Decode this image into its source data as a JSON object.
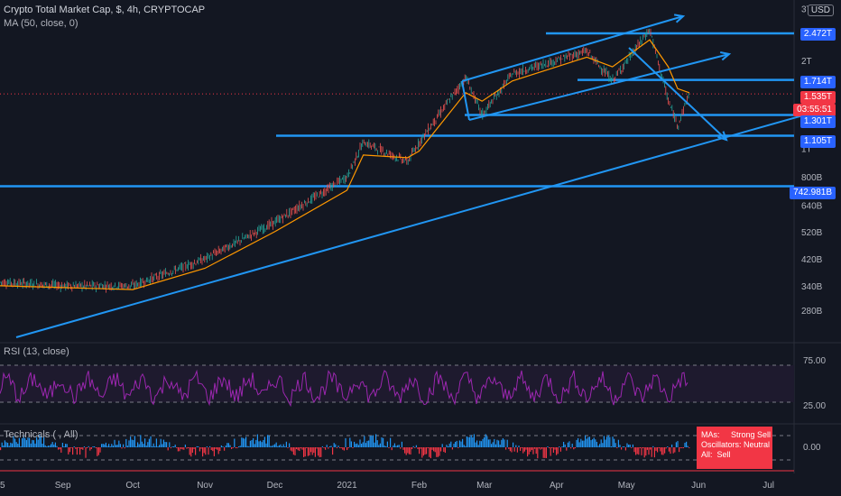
{
  "header": {
    "symbol_line": "Crypto Total Market Cap, $, 4h, CRYPTOCAP",
    "ma_line": "MA (50, close, 0)"
  },
  "currency_badge": "USD",
  "price_axis": {
    "ticks": [
      "3T",
      "2T",
      "1T",
      "800B",
      "640B",
      "520B",
      "420B",
      "340B",
      "280B"
    ],
    "scale": "log",
    "range": [
      230000000000,
      3100000000000
    ]
  },
  "price_tags": {
    "t1": "2.472T",
    "t2": "1.714T",
    "current_price": "1.535T",
    "countdown": "03:55:51",
    "t3": "1.301T",
    "t4": "1.105T",
    "t5": "742.981B"
  },
  "time_axis": [
    "5",
    "Sep",
    "Oct",
    "Nov",
    "Dec",
    "2021",
    "Feb",
    "Mar",
    "Apr",
    "May",
    "Jun",
    "Jul"
  ],
  "rsi": {
    "label": "RSI (13, close)",
    "levels": [
      "75.00",
      "25.00"
    ]
  },
  "technicals": {
    "label": "Technicals ( , All)",
    "zero": "0.00",
    "summary": [
      {
        "key": "MAs:",
        "value": "Strong Sell"
      },
      {
        "key": "Oscillators:",
        "value": "Neutral"
      },
      {
        "key": "All:",
        "value": "Sell"
      }
    ]
  },
  "colors": {
    "background": "#131722",
    "up": "#26a69a",
    "down": "#ef5350",
    "ma": "#ff9800",
    "drawing": "#2196f3",
    "rsi": "#9c27b0",
    "tech_up": "#2196f3",
    "tech_down": "#f23645"
  },
  "chart_data": {
    "type": "line",
    "title": "Crypto Total Market Cap, $, 4h, CRYPTOCAP",
    "yscale": "log",
    "ylim": [
      230000000000,
      3100000000000
    ],
    "x": [
      "2020-08-05",
      "2020-09-01",
      "2020-10-01",
      "2020-11-01",
      "2020-12-01",
      "2021-01-01",
      "2021-01-08",
      "2021-01-27",
      "2021-02-01",
      "2021-02-21",
      "2021-02-28",
      "2021-03-13",
      "2021-04-14",
      "2021-04-25",
      "2021-05-11",
      "2021-05-19",
      "2021-05-23",
      "2021-05-28"
    ],
    "series": [
      {
        "name": "Crypto Total Market Cap",
        "values": [
          350000000000,
          340000000000,
          340000000000,
          420000000000,
          560000000000,
          800000000000,
          1050000000000,
          900000000000,
          1050000000000,
          1750000000000,
          1300000000000,
          1800000000000,
          2150000000000,
          1700000000000,
          2550000000000,
          1450000000000,
          1200000000000,
          1535000000000
        ]
      },
      {
        "name": "MA (50, close, 0)",
        "values": [
          340000000000,
          335000000000,
          330000000000,
          390000000000,
          520000000000,
          720000000000,
          950000000000,
          930000000000,
          980000000000,
          1550000000000,
          1450000000000,
          1700000000000,
          2050000000000,
          1900000000000,
          2350000000000,
          1900000000000,
          1600000000000,
          1550000000000
        ]
      }
    ]
  }
}
